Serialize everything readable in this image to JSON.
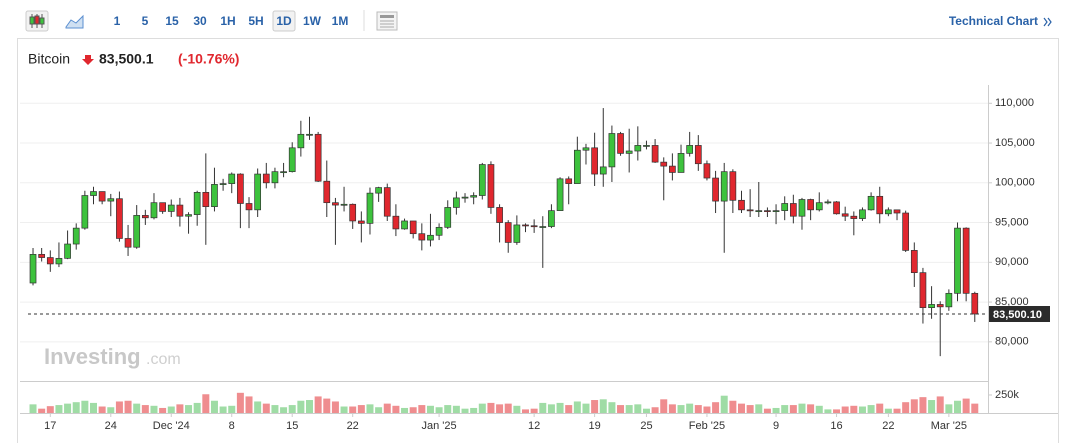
{
  "toolbar": {
    "intervals": [
      "1",
      "5",
      "15",
      "30",
      "1H",
      "5H",
      "1D",
      "1W",
      "1M"
    ],
    "link": "Technical Chart"
  },
  "header": {
    "name": "Bitcoin",
    "price": "83,500.1",
    "change": "(-10.76%)"
  },
  "watermark": {
    "brand": "Investing",
    "suffix": ".com"
  },
  "chart_data": {
    "type": "candlestick",
    "categories": [
      null,
      null,
      "17",
      null,
      null,
      null,
      null,
      null,
      null,
      "24",
      null,
      null,
      null,
      null,
      null,
      null,
      "Dec '24",
      null,
      null,
      null,
      null,
      null,
      null,
      "8",
      null,
      null,
      null,
      null,
      null,
      null,
      "15",
      null,
      null,
      null,
      null,
      null,
      null,
      "22",
      null,
      null,
      null,
      null,
      null,
      null,
      null,
      null,
      null,
      "Jan '25",
      null,
      null,
      null,
      null,
      null,
      null,
      null,
      null,
      null,
      null,
      "12",
      null,
      null,
      null,
      null,
      null,
      null,
      "19",
      null,
      null,
      null,
      null,
      null,
      "25",
      null,
      null,
      null,
      null,
      null,
      null,
      "Feb '25",
      null,
      null,
      null,
      null,
      null,
      null,
      null,
      "9",
      null,
      null,
      null,
      null,
      null,
      null,
      "16",
      null,
      null,
      null,
      null,
      null,
      "22",
      null,
      null,
      null,
      null,
      null,
      null,
      "Mar '25",
      null,
      null,
      null
    ],
    "open": [
      87400,
      91000,
      90600,
      89800,
      90500,
      92300,
      94300,
      98400,
      98900,
      97700,
      98000,
      93000,
      91900,
      95900,
      95600,
      97500,
      96400,
      97200,
      95800,
      96000,
      98800,
      97000,
      99800,
      99900,
      101100,
      97400,
      96600,
      101100,
      100000,
      101400,
      101400,
      104400,
      106100,
      106100,
      100200,
      97500,
      97200,
      97300,
      95200,
      94900,
      98700,
      99400,
      95800,
      94200,
      95200,
      93600,
      92800,
      93400,
      94400,
      96900,
      98100,
      98200,
      98400,
      102300,
      96900,
      95000,
      92500,
      94700,
      94600,
      94500,
      94500,
      96500,
      100500,
      99900,
      104100,
      104400,
      101100,
      102000,
      106200,
      103700,
      104000,
      104700,
      104700,
      102600,
      102100,
      101300,
      103700,
      104700,
      102400,
      100600,
      97700,
      101400,
      97800,
      96600,
      96500,
      96500,
      96400,
      96500,
      97400,
      95800,
      97900,
      96600,
      97500,
      97600,
      96100,
      95800,
      95500,
      96600,
      98300,
      96100,
      96600,
      96200,
      91500,
      88700,
      84300,
      84700,
      84400,
      86100,
      94300,
      86100
    ],
    "high": [
      91800,
      91800,
      91500,
      92500,
      94000,
      94900,
      99000,
      99500,
      98900,
      98600,
      98900,
      94700,
      97200,
      96600,
      98700,
      97500,
      97900,
      98100,
      96300,
      99000,
      103700,
      101900,
      100500,
      101300,
      101200,
      98200,
      101800,
      102500,
      101900,
      102500,
      105100,
      107800,
      108300,
      106400,
      102800,
      98100,
      99500,
      97400,
      96400,
      99400,
      99500,
      99900,
      97300,
      95500,
      95200,
      94900,
      96100,
      94900,
      97800,
      98900,
      98700,
      98800,
      102500,
      102700,
      97300,
      95300,
      95900,
      94900,
      95400,
      95800,
      97300,
      100700,
      100800,
      105800,
      104900,
      106300,
      109400,
      107200,
      106400,
      106800,
      107100,
      105300,
      105500,
      103200,
      103700,
      104800,
      106400,
      106000,
      102800,
      101500,
      102500,
      101700,
      99000,
      99200,
      100100,
      96900,
      97300,
      98300,
      98500,
      98100,
      98000,
      98800,
      97900,
      97700,
      97000,
      96400,
      96900,
      98800,
      99500,
      96900,
      96600,
      96500,
      92500,
      89300,
      87000,
      85100,
      86600,
      95000,
      94400,
      86300
    ],
    "low": [
      87100,
      90100,
      88800,
      89400,
      90400,
      91600,
      94100,
      97300,
      97300,
      95800,
      92600,
      90800,
      91700,
      94700,
      95400,
      96100,
      95700,
      94500,
      93600,
      94600,
      92200,
      96400,
      99000,
      98700,
      94300,
      94300,
      95700,
      99300,
      99300,
      100700,
      101300,
      103300,
      105400,
      100100,
      95700,
      92200,
      96400,
      94200,
      92500,
      93500,
      97600,
      95200,
      93300,
      94100,
      93000,
      91500,
      92000,
      92800,
      94200,
      96000,
      97500,
      97300,
      97900,
      96100,
      92500,
      91200,
      92200,
      93800,
      93700,
      89300,
      94300,
      96500,
      97300,
      99900,
      102300,
      99600,
      99500,
      100100,
      103400,
      101300,
      102800,
      104200,
      102500,
      97800,
      100300,
      101300,
      103300,
      101500,
      100300,
      96200,
      91200,
      96200,
      96200,
      95700,
      95700,
      95700,
      94800,
      95300,
      94900,
      94100,
      95300,
      96400,
      97300,
      96000,
      95200,
      93400,
      95200,
      96500,
      94900,
      95800,
      95300,
      91300,
      86900,
      82300,
      82900,
      78200,
      83900,
      85100,
      85100,
      82500
    ],
    "close": [
      91000,
      90600,
      89800,
      90500,
      92300,
      94300,
      98400,
      98900,
      97700,
      98000,
      93000,
      91900,
      95900,
      95600,
      97500,
      96400,
      97200,
      95800,
      96000,
      98800,
      97000,
      99800,
      99900,
      101100,
      97400,
      96600,
      101100,
      100000,
      101400,
      101400,
      104400,
      106100,
      106100,
      100200,
      97500,
      97200,
      97300,
      95200,
      94900,
      98700,
      99400,
      95800,
      94200,
      95200,
      93600,
      92800,
      93400,
      94400,
      96900,
      98100,
      98200,
      98400,
      102300,
      96900,
      95000,
      92500,
      94700,
      94600,
      94500,
      94500,
      96500,
      100500,
      99900,
      104100,
      104400,
      101100,
      102000,
      106200,
      103700,
      104000,
      104700,
      104700,
      102600,
      102100,
      101300,
      103700,
      104700,
      102400,
      100600,
      97700,
      101400,
      97800,
      96600,
      96500,
      96500,
      96400,
      96500,
      97400,
      95800,
      97900,
      96600,
      97500,
      97600,
      96100,
      95800,
      95500,
      96600,
      98300,
      96100,
      96600,
      96200,
      91500,
      88700,
      84300,
      84700,
      84400,
      86100,
      94300,
      86100,
      83500.1
    ],
    "volume": [
      120000,
      60000,
      95000,
      110000,
      130000,
      150000,
      170000,
      140000,
      90000,
      80000,
      160000,
      170000,
      130000,
      110000,
      100000,
      70000,
      90000,
      120000,
      110000,
      140000,
      260000,
      170000,
      90000,
      100000,
      280000,
      230000,
      160000,
      130000,
      110000,
      80000,
      110000,
      170000,
      180000,
      230000,
      200000,
      160000,
      90000,
      90000,
      110000,
      120000,
      80000,
      130000,
      100000,
      70000,
      80000,
      110000,
      100000,
      80000,
      110000,
      100000,
      60000,
      70000,
      130000,
      140000,
      120000,
      130000,
      100000,
      50000,
      60000,
      140000,
      120000,
      140000,
      110000,
      160000,
      130000,
      180000,
      190000,
      150000,
      110000,
      110000,
      120000,
      60000,
      80000,
      190000,
      120000,
      110000,
      130000,
      110000,
      90000,
      150000,
      240000,
      170000,
      130000,
      110000,
      120000,
      60000,
      70000,
      110000,
      110000,
      130000,
      120000,
      100000,
      50000,
      50000,
      90000,
      100000,
      90000,
      110000,
      130000,
      60000,
      60000,
      150000,
      190000,
      220000,
      180000,
      230000,
      120000,
      170000,
      200000,
      130000
    ],
    "ylim": [
      75200,
      112300
    ],
    "yticks": [
      {
        "value": 80000,
        "label": "80,000"
      },
      {
        "value": 85000,
        "label": "85,000"
      },
      {
        "value": 90000,
        "label": "90,000"
      },
      {
        "value": 95000,
        "label": "95,000"
      },
      {
        "value": 100000,
        "label": "100,000"
      },
      {
        "value": 105000,
        "label": "105,000"
      },
      {
        "value": 110000,
        "label": "110,000"
      }
    ],
    "volume_lim": [
      0,
      444000
    ],
    "volume_ticks": [
      {
        "value": 250000,
        "label": "250k"
      }
    ],
    "last_price": {
      "value": 83500.1,
      "label": "83,500.10"
    },
    "up_color": "#3dc23d",
    "down_color": "#e0272e",
    "volume_up_color": "#9fdca5",
    "volume_down_color": "#ef8d8f"
  }
}
